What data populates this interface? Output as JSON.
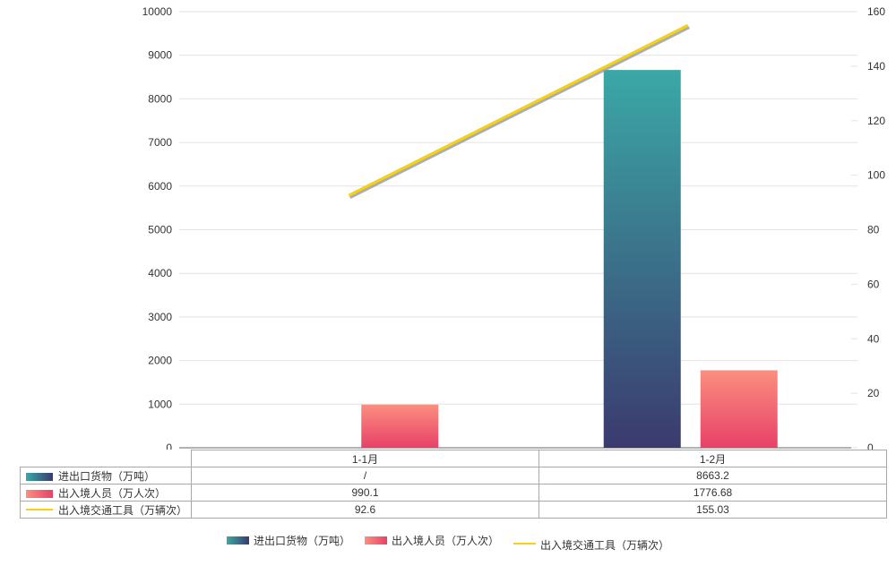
{
  "chart_data": {
    "type": "bar",
    "title": "",
    "categories": [
      "1-1月",
      "1-2月"
    ],
    "series": [
      {
        "key": "import-export-cargo",
        "name": "进出口货物（万吨）",
        "type": "bar",
        "yaxis": "left",
        "values": [
          null,
          8663.2
        ],
        "display": [
          "/",
          "8663.2"
        ],
        "gradient": [
          "#3BA8A6",
          "#3B3A6E"
        ]
      },
      {
        "key": "entry-exit-passengers",
        "name": "出入境人员（万人次）",
        "type": "bar",
        "yaxis": "left",
        "values": [
          990.1,
          1776.68
        ],
        "display": [
          "990.1",
          "1776.68"
        ],
        "gradient": [
          "#FB8F80",
          "#E84168"
        ]
      },
      {
        "key": "entry-exit-vehicles",
        "name": "出入境交通工具（万辆次）",
        "type": "line",
        "yaxis": "right",
        "values": [
          92.6,
          155.03
        ],
        "display": [
          "92.6",
          "155.03"
        ],
        "color": "#F5D313",
        "shadow_color": "#999999"
      }
    ],
    "left_axis": {
      "min": 0,
      "max": 10000,
      "step": 1000,
      "ticks": [
        "0",
        "1000",
        "2000",
        "3000",
        "4000",
        "5000",
        "6000",
        "7000",
        "8000",
        "9000",
        "10000"
      ]
    },
    "right_axis": {
      "min": 0,
      "max": 160,
      "step": 20,
      "ticks": [
        "0",
        "20",
        "40",
        "60",
        "80",
        "100",
        "120",
        "140",
        "160"
      ]
    },
    "grid": true,
    "legend_position": "bottom",
    "xlabel": "",
    "ylabel": ""
  },
  "colors": {
    "grid_line": "#e2e2e2",
    "axis_line": "#666666",
    "table_border": "#a8a8a8",
    "text": "#333333",
    "background": "#ffffff"
  }
}
